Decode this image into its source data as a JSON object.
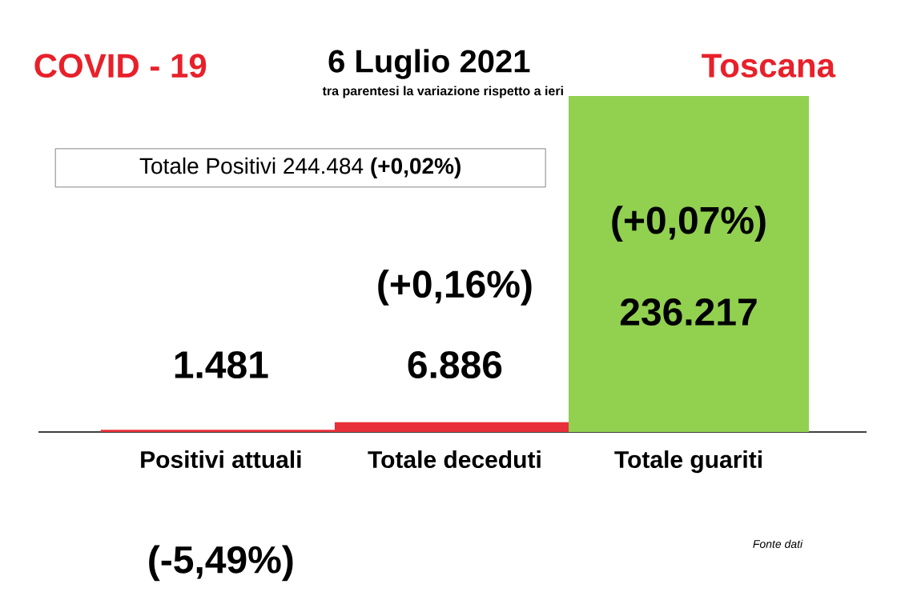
{
  "chart_data": {
    "type": "bar",
    "title": "6 Luglio 2021",
    "subtitle": "tra parentesi la variazione rispetto a ieri",
    "categories": [
      "Positivi attuali",
      "Totale deceduti",
      "Totale guariti"
    ],
    "values": [
      1481,
      6886,
      236217
    ],
    "colors": [
      "#e8303a",
      "#e8303a",
      "#92d050"
    ],
    "value_labels": [
      "1.481",
      "6.886",
      "236.217"
    ],
    "annotations": [
      "COVID - 19",
      "Toscana",
      "Totale Positivi    244.484 **(+0,02%)**",
      "(-5,49%)",
      "(+0,16%)",
      "(+0,07%)",
      "Fonte dati"
    ]
  }
}
